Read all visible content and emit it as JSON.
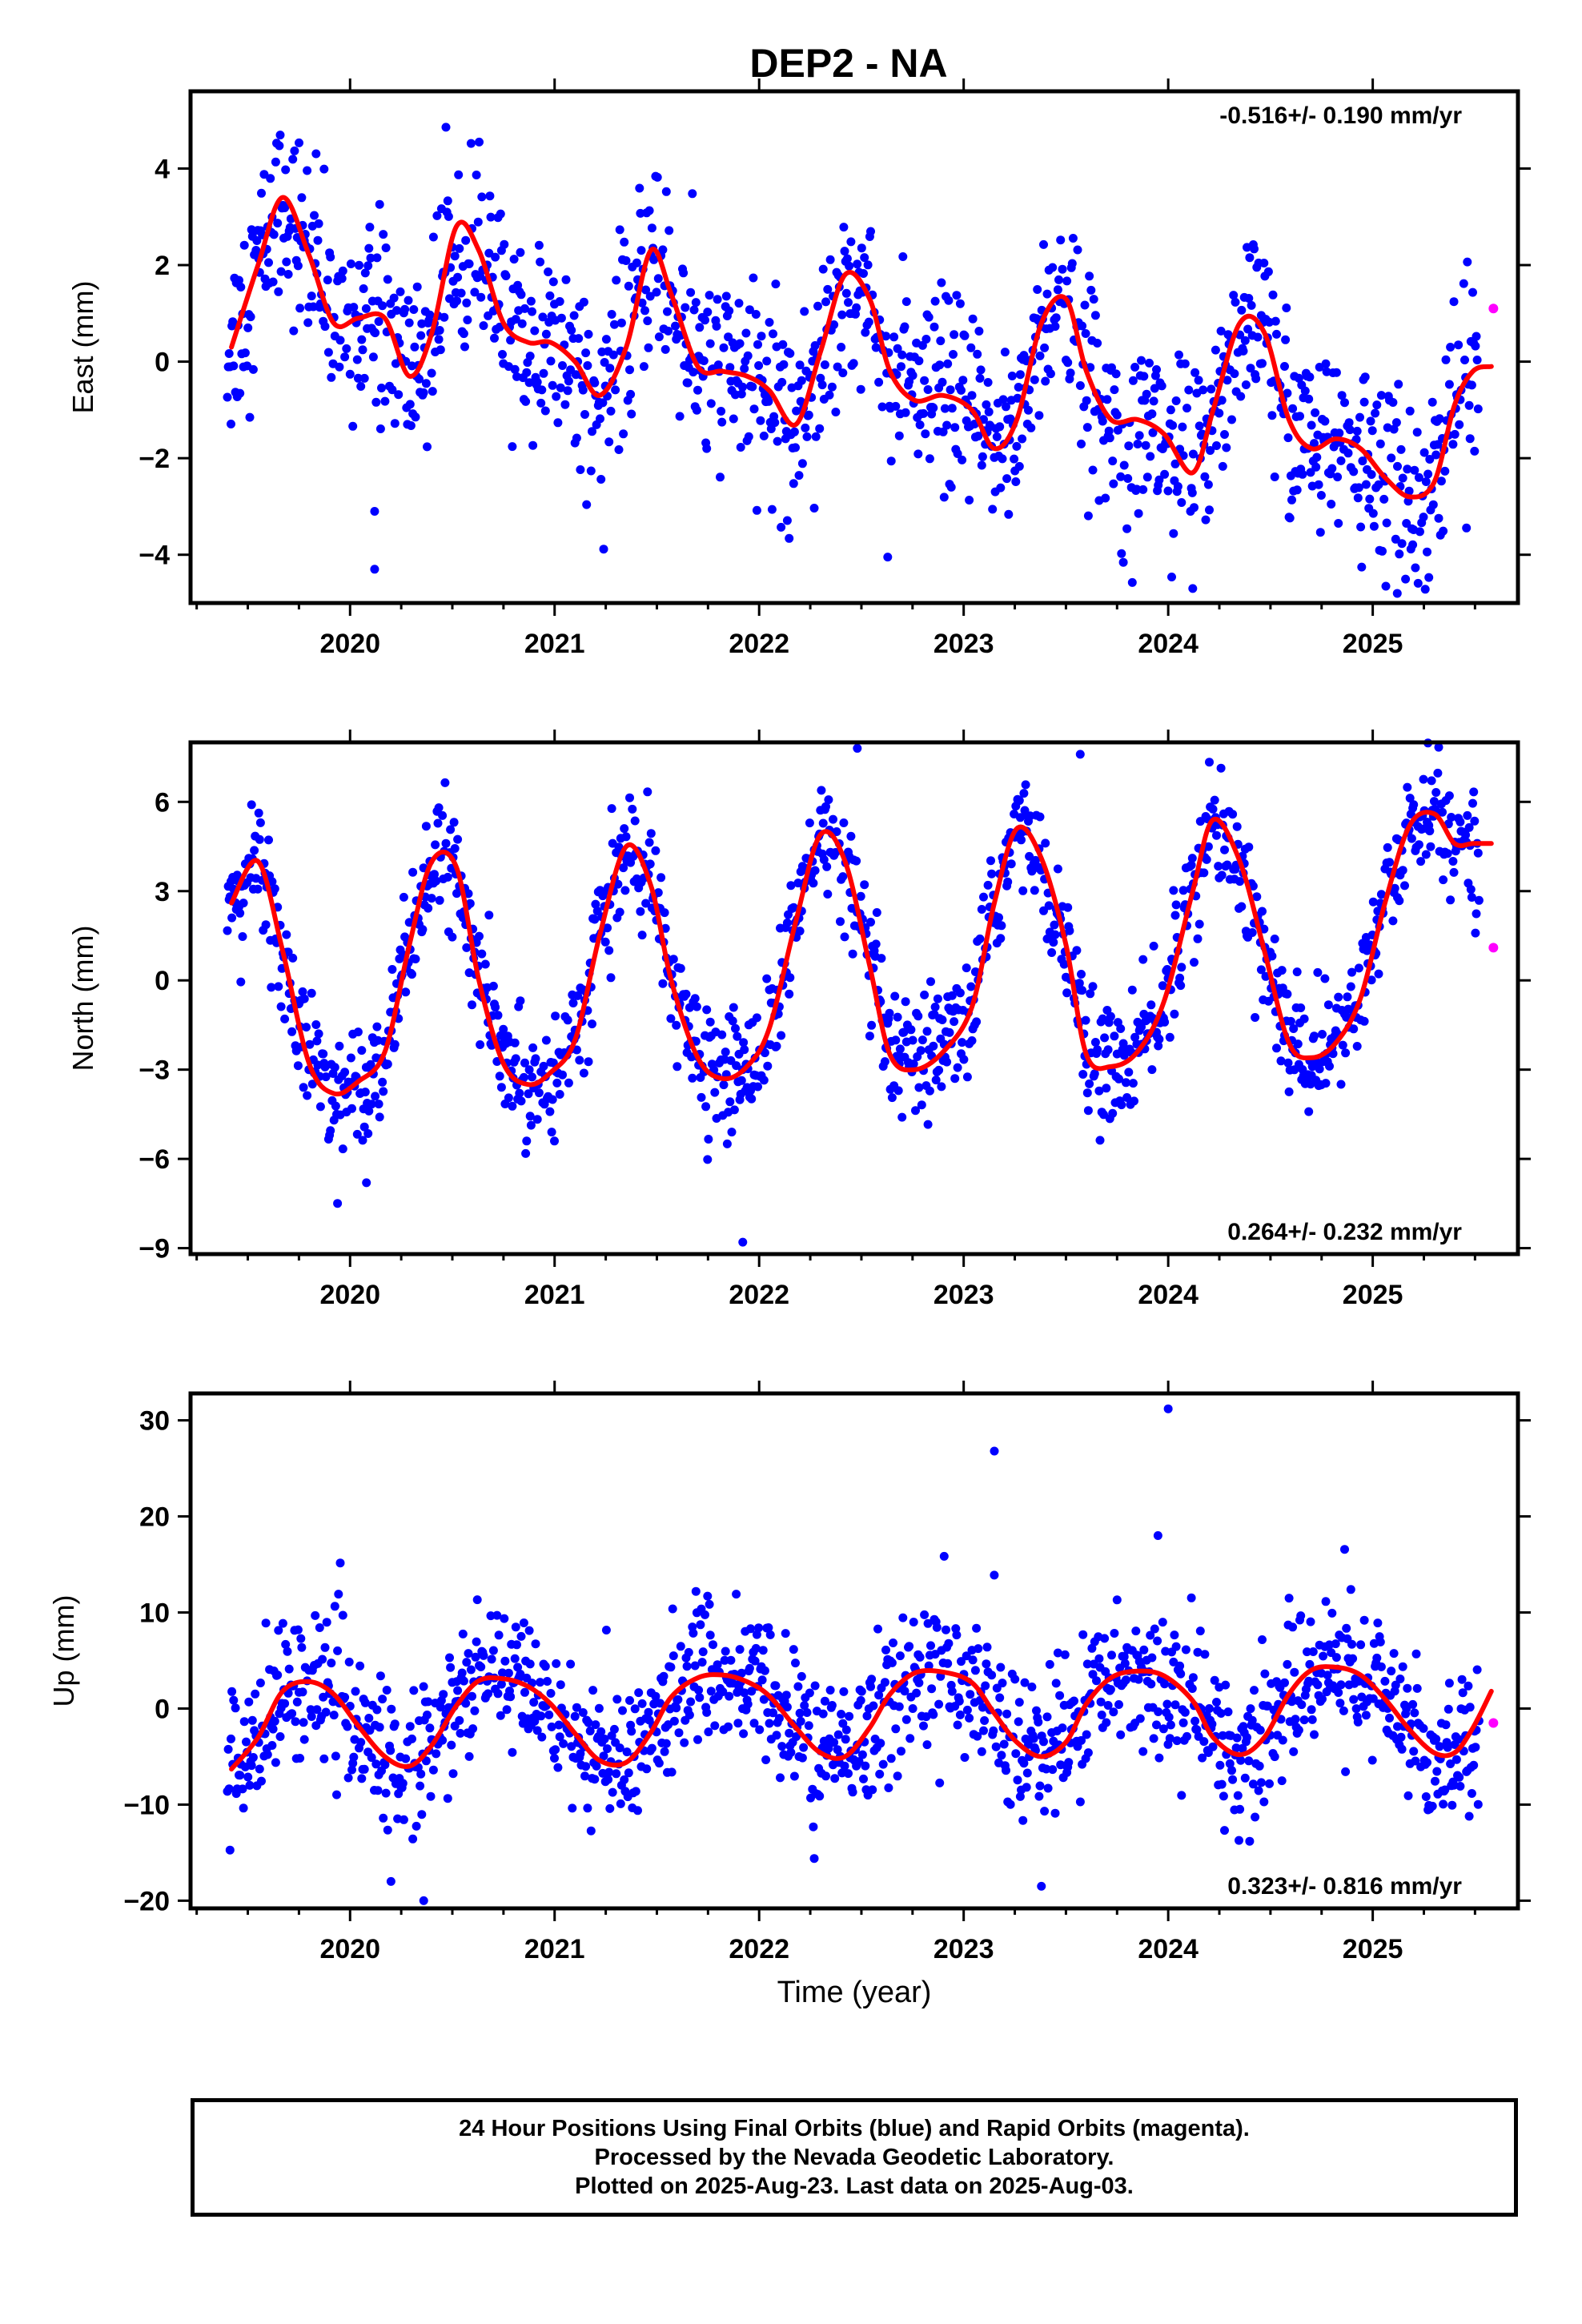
{
  "title": "DEP2 - NA",
  "colors": {
    "final_orbits": "#0000ff",
    "rapid_orbits": "#ff00ff",
    "model": "#ff0000",
    "axes": "#000000"
  },
  "chart_data": [
    {
      "type": "scatter",
      "panel": "east",
      "ylabel": "East (mm)",
      "xlim": [
        2019.22,
        2025.71
      ],
      "ylim": [
        -5.0,
        5.6
      ],
      "yticks": [
        4,
        2,
        0,
        -2,
        -4
      ],
      "xticks": [
        2020,
        2021,
        2022,
        2023,
        2024,
        2025
      ],
      "grid": false,
      "annotation": "-0.516+/- 0.190 mm/yr",
      "annotation_position": "top-right",
      "series": [
        {
          "name": "Final Orbits",
          "color": "#0000ff",
          "x_range": [
            2019.4,
            2025.52
          ],
          "approx_scatter_std_mm": 1.0,
          "outliers": [
            [
              2020.12,
              -4.3
            ],
            [
              2020.12,
              -3.1
            ],
            [
              2024.12,
              -4.7
            ],
            [
              2025.12,
              -4.8
            ]
          ]
        },
        {
          "name": "Rapid Orbits",
          "color": "#ff00ff",
          "x": [
            2025.59
          ],
          "y": [
            1.1
          ]
        },
        {
          "name": "Model",
          "color": "#ff0000",
          "x": [
            2019.42,
            2019.55,
            2019.67,
            2019.8,
            2019.92,
            2020.04,
            2020.17,
            2020.29,
            2020.4,
            2020.52,
            2020.63,
            2020.75,
            2020.87,
            2020.98,
            2021.1,
            2021.22,
            2021.35,
            2021.47,
            2021.57,
            2021.7,
            2021.82,
            2021.94,
            2022.05,
            2022.18,
            2022.3,
            2022.42,
            2022.54,
            2022.64,
            2022.76,
            2022.9,
            2023.04,
            2023.15,
            2023.26,
            2023.38,
            2023.5,
            2023.6,
            2023.72,
            2023.85,
            2023.98,
            2024.12,
            2024.22,
            2024.35,
            2024.47,
            2024.59,
            2024.7,
            2024.82,
            2024.94,
            2025.06,
            2025.18,
            2025.3,
            2025.4,
            2025.49,
            2025.58
          ],
          "y": [
            0.3,
            2.0,
            3.4,
            2.2,
            0.8,
            0.9,
            0.9,
            -0.3,
            0.6,
            2.8,
            2.3,
            0.8,
            0.4,
            0.4,
            0.0,
            -0.7,
            0.3,
            2.3,
            1.4,
            -0.1,
            -0.2,
            -0.3,
            -0.6,
            -1.3,
            0.2,
            1.8,
            1.3,
            -0.2,
            -0.8,
            -0.7,
            -1.0,
            -1.8,
            -1.2,
            0.8,
            1.3,
            -0.2,
            -1.2,
            -1.2,
            -1.5,
            -2.3,
            -1.0,
            0.8,
            0.6,
            -1.2,
            -1.8,
            -1.6,
            -1.8,
            -2.4,
            -2.8,
            -2.5,
            -0.9,
            -0.2,
            -0.1
          ]
        }
      ]
    },
    {
      "type": "scatter",
      "panel": "north",
      "ylabel": "North (mm)",
      "xlim": [
        2019.22,
        2025.71
      ],
      "ylim": [
        -9.2,
        8.0
      ],
      "yticks": [
        6,
        3,
        0,
        -3,
        -6,
        -9
      ],
      "xticks": [
        2020,
        2021,
        2022,
        2023,
        2024,
        2025
      ],
      "grid": false,
      "annotation": "0.264+/- 0.232 mm/yr",
      "annotation_position": "bottom-right",
      "series": [
        {
          "name": "Final Orbits",
          "color": "#0000ff",
          "x_range": [
            2019.4,
            2025.52
          ],
          "approx_scatter_std_mm": 1.0,
          "outliers": [
            [
              2020.08,
              -6.8
            ],
            [
              2021.92,
              -8.8
            ],
            [
              2022.48,
              7.8
            ],
            [
              2023.57,
              7.6
            ]
          ]
        },
        {
          "name": "Rapid Orbits",
          "color": "#ff00ff",
          "x": [
            2025.59
          ],
          "y": [
            1.1
          ]
        },
        {
          "name": "Model",
          "color": "#ff0000",
          "x": [
            2019.42,
            2019.55,
            2019.67,
            2019.8,
            2019.92,
            2020.04,
            2020.17,
            2020.29,
            2020.4,
            2020.52,
            2020.63,
            2020.75,
            2020.87,
            2020.98,
            2021.1,
            2021.22,
            2021.35,
            2021.47,
            2021.57,
            2021.7,
            2021.82,
            2021.94,
            2022.05,
            2022.18,
            2022.3,
            2022.42,
            2022.54,
            2022.64,
            2022.76,
            2022.9,
            2023.04,
            2023.15,
            2023.26,
            2023.38,
            2023.5,
            2023.6,
            2023.72,
            2023.85,
            2023.98,
            2024.12,
            2024.22,
            2024.35,
            2024.47,
            2024.59,
            2024.7,
            2024.82,
            2024.94,
            2025.06,
            2025.18,
            2025.3,
            2025.4,
            2025.49,
            2025.58
          ],
          "y": [
            2.6,
            4.0,
            1.0,
            -2.8,
            -3.8,
            -3.4,
            -2.4,
            1.2,
            4.0,
            3.8,
            0.0,
            -2.8,
            -3.5,
            -3.1,
            -2.0,
            1.5,
            4.5,
            3.2,
            0.0,
            -2.6,
            -3.3,
            -2.9,
            -1.6,
            2.0,
            4.9,
            4.0,
            0.5,
            -2.5,
            -3.0,
            -2.4,
            -0.9,
            2.6,
            5.1,
            4.1,
            1.2,
            -2.5,
            -2.9,
            -2.4,
            -0.7,
            3.0,
            5.4,
            4.0,
            1.0,
            -2.1,
            -2.6,
            -2.1,
            -0.6,
            2.6,
            5.2,
            5.6,
            4.6,
            4.6,
            4.6
          ]
        }
      ]
    },
    {
      "type": "scatter",
      "panel": "up",
      "ylabel": "Up (mm)",
      "xlabel": "Time (year)",
      "xlim": [
        2019.22,
        2025.71
      ],
      "ylim": [
        -20.8,
        32.8
      ],
      "yticks": [
        30,
        20,
        10,
        0,
        -10,
        -20
      ],
      "xticks": [
        2020,
        2021,
        2022,
        2023,
        2024,
        2025
      ],
      "grid": false,
      "annotation": "0.323+/- 0.816 mm/yr",
      "annotation_position": "bottom-right",
      "series": [
        {
          "name": "Final Orbits",
          "color": "#0000ff",
          "x_range": [
            2019.4,
            2025.52
          ],
          "approx_scatter_std_mm": 3.8,
          "outliers": [
            [
              2020.36,
              -20.0
            ],
            [
              2023.15,
              26.8
            ],
            [
              2024.0,
              31.2
            ],
            [
              2023.95,
              18.0
            ],
            [
              2023.38,
              -18.5
            ],
            [
              2020.2,
              -18.0
            ]
          ]
        },
        {
          "name": "Rapid Orbits",
          "color": "#ff00ff",
          "x": [
            2025.59
          ],
          "y": [
            -1.5
          ]
        },
        {
          "name": "Model",
          "color": "#ff0000",
          "x": [
            2019.42,
            2019.55,
            2019.67,
            2019.8,
            2019.92,
            2020.04,
            2020.17,
            2020.29,
            2020.4,
            2020.52,
            2020.63,
            2020.75,
            2020.87,
            2020.98,
            2021.1,
            2021.22,
            2021.35,
            2021.47,
            2021.57,
            2021.7,
            2021.82,
            2021.94,
            2022.05,
            2022.18,
            2022.3,
            2022.42,
            2022.54,
            2022.64,
            2022.76,
            2022.9,
            2023.04,
            2023.15,
            2023.26,
            2023.38,
            2023.5,
            2023.6,
            2023.72,
            2023.85,
            2023.98,
            2024.12,
            2024.22,
            2024.35,
            2024.47,
            2024.59,
            2024.7,
            2024.82,
            2024.94,
            2025.06,
            2025.18,
            2025.3,
            2025.4,
            2025.49,
            2025.58
          ],
          "y": [
            -6.3,
            -3.0,
            1.8,
            2.8,
            1.5,
            -1.8,
            -5.0,
            -6.0,
            -3.8,
            0.3,
            2.9,
            3.1,
            2.3,
            0.5,
            -2.6,
            -5.4,
            -5.6,
            -2.5,
            1.2,
            3.2,
            3.5,
            2.8,
            1.3,
            -2.0,
            -4.6,
            -5.0,
            -2.0,
            1.5,
            3.7,
            3.8,
            2.7,
            -0.5,
            -3.5,
            -5.0,
            -3.5,
            0.5,
            3.2,
            3.9,
            3.4,
            0.8,
            -3.0,
            -4.8,
            -3.0,
            1.5,
            4.0,
            4.3,
            3.5,
            1.0,
            -2.2,
            -4.6,
            -4.6,
            -2.0,
            1.8
          ]
        }
      ]
    }
  ],
  "footer": {
    "line1": "24 Hour Positions Using Final Orbits (blue) and Rapid Orbits (magenta).",
    "line2": "Processed by the Nevada Geodetic Laboratory.",
    "line3": "Plotted on 2025-Aug-23. Last data on 2025-Aug-03."
  }
}
